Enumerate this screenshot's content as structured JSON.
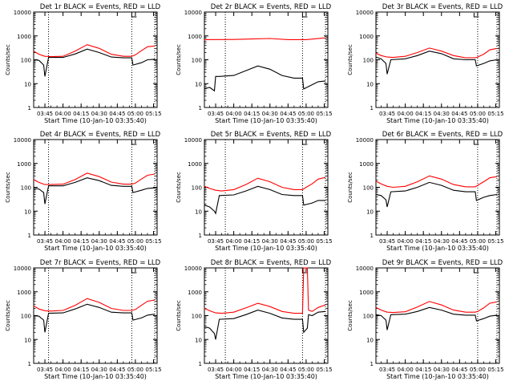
{
  "chart_data": [
    {
      "type": "line",
      "title": "Det 1r BLACK = Events, RED = LLD",
      "xlabel": "Start Time (10-Jan-10 03:35:40)",
      "ylabel": "Counts/sec",
      "xtick_labels": [
        "03:45",
        "04:00",
        "04:15",
        "04:30",
        "04:45",
        "05:00",
        "05:15"
      ],
      "ytick_labels": [
        "1",
        "10",
        "100",
        "1000",
        "10000"
      ],
      "y_scale": "log",
      "ylim": [
        1,
        10000
      ],
      "xlim": [
        "03:35:40",
        "05:18:00"
      ],
      "dotted_vlines": [
        "03:48",
        "04:57",
        "05:16"
      ],
      "series": [
        {
          "color": "#000000",
          "x": [
            "03:35:40",
            "03:40",
            "03:44",
            "03:45",
            "03:48",
            "04:00",
            "04:10",
            "04:20",
            "04:30",
            "04:40",
            "04:50",
            "04:57",
            "04:58",
            "05:05",
            "05:10",
            "05:16"
          ],
          "values": [
            100,
            95,
            60,
            20,
            125,
            125,
            175,
            280,
            200,
            130,
            120,
            120,
            60,
            75,
            100,
            105
          ]
        },
        {
          "color": "#ff0000",
          "x": [
            "03:35:40",
            "03:40",
            "03:45",
            "03:50",
            "04:00",
            "04:10",
            "04:20",
            "04:30",
            "04:40",
            "04:50",
            "04:57",
            "05:00",
            "05:05",
            "05:10",
            "05:16"
          ],
          "values": [
            230,
            170,
            140,
            135,
            140,
            230,
            430,
            300,
            170,
            140,
            140,
            160,
            240,
            350,
            380
          ]
        }
      ]
    },
    {
      "type": "line",
      "title": "Det 2r BLACK = Events, RED = LLD",
      "xlabel": "Start Time (10-Jan-10 03:35:40)",
      "ylabel": "Counts/sec",
      "xtick_labels": [
        "03:45",
        "04:00",
        "04:15",
        "04:30",
        "04:45",
        "05:00",
        "05:15"
      ],
      "ytick_labels": [
        "1",
        "10",
        "100",
        "1000",
        "10000"
      ],
      "y_scale": "log",
      "ylim": [
        1,
        10000
      ],
      "xlim": [
        "03:35:40",
        "05:18:00"
      ],
      "dotted_vlines": [
        "03:53",
        "04:57",
        "05:16"
      ],
      "series": [
        {
          "color": "#000000",
          "x": [
            "03:35:40",
            "03:40",
            "03:44",
            "03:45",
            "03:48",
            "04:00",
            "04:10",
            "04:20",
            "04:30",
            "04:40",
            "04:50",
            "04:57",
            "04:58",
            "05:05",
            "05:10",
            "05:16"
          ],
          "values": [
            6,
            7,
            5,
            20,
            20,
            22,
            35,
            55,
            40,
            22,
            17,
            17,
            6,
            9,
            12,
            13
          ]
        },
        {
          "color": "#ff0000",
          "x": [
            "03:35:40",
            "04:00",
            "04:15",
            "04:30",
            "04:45",
            "05:00",
            "05:16"
          ],
          "values": [
            700,
            710,
            740,
            780,
            700,
            700,
            830
          ]
        }
      ]
    },
    {
      "type": "line",
      "title": "Det 3r BLACK = Events, RED = LLD",
      "xlabel": "Start Time (10-Jan-10 03:35:40)",
      "ylabel": "Counts/sec",
      "xtick_labels": [
        "03:45",
        "04:00",
        "04:15",
        "04:30",
        "04:45",
        "05:00",
        "05:15"
      ],
      "ytick_labels": [
        "1",
        "10",
        "100",
        "1000",
        "10000"
      ],
      "y_scale": "log",
      "ylim": [
        1,
        10000
      ],
      "xlim": [
        "03:35:40",
        "05:18:00"
      ],
      "dotted_vlines": [
        "05:00",
        "05:16"
      ],
      "series": [
        {
          "color": "#000000",
          "x": [
            "03:35:40",
            "03:40",
            "03:44",
            "03:45",
            "03:48",
            "04:00",
            "04:10",
            "04:20",
            "04:30",
            "04:40",
            "04:50",
            "04:58",
            "04:59",
            "05:05",
            "05:10",
            "05:16"
          ],
          "values": [
            130,
            110,
            70,
            25,
            100,
            110,
            150,
            230,
            180,
            110,
            100,
            100,
            55,
            70,
            90,
            100
          ]
        },
        {
          "color": "#ff0000",
          "x": [
            "03:35:40",
            "03:40",
            "03:45",
            "03:50",
            "04:00",
            "04:10",
            "04:20",
            "04:30",
            "04:40",
            "04:50",
            "04:58",
            "05:00",
            "05:05",
            "05:10",
            "05:16"
          ],
          "values": [
            190,
            150,
            130,
            125,
            140,
            200,
            310,
            230,
            150,
            120,
            120,
            130,
            170,
            260,
            300
          ]
        }
      ]
    },
    {
      "type": "line",
      "title": "Det 4r BLACK = Events, RED = LLD",
      "xlabel": "Start Time (10-Jan-10 03:35:40)",
      "ylabel": "Counts/sec",
      "xtick_labels": [
        "03:45",
        "04:00",
        "04:15",
        "04:30",
        "04:45",
        "05:00",
        "05:15"
      ],
      "ytick_labels": [
        "1",
        "10",
        "100",
        "1000",
        "10000"
      ],
      "y_scale": "log",
      "ylim": [
        1,
        10000
      ],
      "xlim": [
        "03:35:40",
        "05:18:00"
      ],
      "dotted_vlines": [
        "03:48",
        "04:57",
        "05:16"
      ],
      "series": [
        {
          "color": "#000000",
          "x": [
            "03:35:40",
            "03:40",
            "03:44",
            "03:45",
            "03:48",
            "04:00",
            "04:10",
            "04:20",
            "04:30",
            "04:40",
            "04:50",
            "04:57",
            "04:58",
            "05:05",
            "05:10",
            "05:16"
          ],
          "values": [
            90,
            85,
            60,
            20,
            115,
            115,
            160,
            250,
            190,
            120,
            110,
            110,
            60,
            75,
            90,
            95
          ]
        },
        {
          "color": "#ff0000",
          "x": [
            "03:35:40",
            "03:40",
            "03:45",
            "03:50",
            "04:00",
            "04:10",
            "04:20",
            "04:30",
            "04:40",
            "04:50",
            "04:57",
            "05:00",
            "05:05",
            "05:10",
            "05:16"
          ],
          "values": [
            210,
            160,
            130,
            130,
            135,
            210,
            390,
            280,
            165,
            135,
            135,
            150,
            220,
            320,
            360
          ]
        }
      ]
    },
    {
      "type": "line",
      "title": "Det 5r BLACK = Events, RED = LLD",
      "xlabel": "Start Time (10-Jan-10 03:35:40)",
      "ylabel": "Counts/sec",
      "xtick_labels": [
        "03:45",
        "04:00",
        "04:15",
        "04:30",
        "04:45",
        "05:00",
        "05:15"
      ],
      "ytick_labels": [
        "1",
        "10",
        "100",
        "1000",
        "10000"
      ],
      "y_scale": "log",
      "ylim": [
        1,
        10000
      ],
      "xlim": [
        "03:35:40",
        "05:18:00"
      ],
      "dotted_vlines": [
        "03:53",
        "04:57",
        "05:16"
      ],
      "series": [
        {
          "color": "#000000",
          "x": [
            "03:35:40",
            "03:40",
            "03:44",
            "03:45",
            "03:48",
            "04:00",
            "04:10",
            "04:20",
            "04:30",
            "04:40",
            "04:50",
            "04:57",
            "04:58",
            "05:05",
            "05:10",
            "05:16"
          ],
          "values": [
            18,
            15,
            10,
            8,
            45,
            48,
            70,
            110,
            80,
            50,
            45,
            45,
            18,
            22,
            28,
            28
          ]
        },
        {
          "color": "#ff0000",
          "x": [
            "03:35:40",
            "03:40",
            "03:45",
            "03:50",
            "04:00",
            "04:10",
            "04:20",
            "04:30",
            "04:40",
            "04:50",
            "04:57",
            "05:00",
            "05:05",
            "05:10",
            "05:16"
          ],
          "values": [
            110,
            90,
            75,
            70,
            80,
            130,
            240,
            170,
            100,
            80,
            80,
            100,
            140,
            220,
            260
          ]
        }
      ]
    },
    {
      "type": "line",
      "title": "Det 6r BLACK = Events, RED = LLD",
      "xlabel": "Start Time (10-Jan-10 03:35:40)",
      "ylabel": "Counts/sec",
      "xtick_labels": [
        "03:45",
        "04:00",
        "04:15",
        "04:30",
        "04:45",
        "05:00",
        "05:15"
      ],
      "ytick_labels": [
        "1",
        "10",
        "100",
        "1000",
        "10000"
      ],
      "y_scale": "log",
      "ylim": [
        1,
        10000
      ],
      "xlim": [
        "03:35:40",
        "05:18:00"
      ],
      "dotted_vlines": [
        "05:00",
        "05:16"
      ],
      "series": [
        {
          "color": "#000000",
          "x": [
            "03:35:40",
            "03:40",
            "03:44",
            "03:45",
            "03:48",
            "04:00",
            "04:10",
            "04:20",
            "04:30",
            "04:40",
            "04:50",
            "04:58",
            "04:59",
            "05:05",
            "05:10",
            "05:16"
          ],
          "values": [
            50,
            45,
            30,
            15,
            65,
            70,
            100,
            160,
            120,
            75,
            65,
            65,
            28,
            38,
            45,
            50
          ]
        },
        {
          "color": "#ff0000",
          "x": [
            "03:35:40",
            "03:40",
            "03:45",
            "03:50",
            "04:00",
            "04:10",
            "04:20",
            "04:30",
            "04:40",
            "04:50",
            "04:58",
            "05:00",
            "05:05",
            "05:10",
            "05:16"
          ],
          "values": [
            180,
            140,
            110,
            100,
            110,
            170,
            300,
            220,
            130,
            105,
            105,
            120,
            170,
            250,
            280
          ]
        }
      ]
    },
    {
      "type": "line",
      "title": "Det 7r BLACK = Events, RED = LLD",
      "xlabel": "Start Time (10-Jan-10 03:35:40)",
      "ylabel": "Counts/sec",
      "xtick_labels": [
        "03:45",
        "04:00",
        "04:15",
        "04:30",
        "04:45",
        "05:00",
        "05:15"
      ],
      "ytick_labels": [
        "1",
        "10",
        "100",
        "1000",
        "10000"
      ],
      "y_scale": "log",
      "ylim": [
        1,
        10000
      ],
      "xlim": [
        "03:35:40",
        "05:18:00"
      ],
      "dotted_vlines": [
        "03:48",
        "04:57",
        "05:16"
      ],
      "series": [
        {
          "color": "#000000",
          "x": [
            "03:35:40",
            "03:40",
            "03:44",
            "03:45",
            "03:48",
            "04:00",
            "04:10",
            "04:20",
            "04:30",
            "04:40",
            "04:50",
            "04:57",
            "04:58",
            "05:05",
            "05:10",
            "05:16"
          ],
          "values": [
            100,
            95,
            65,
            20,
            125,
            130,
            190,
            300,
            220,
            140,
            130,
            130,
            65,
            80,
            105,
            115
          ]
        },
        {
          "color": "#ff0000",
          "x": [
            "03:35:40",
            "03:40",
            "03:45",
            "03:50",
            "04:00",
            "04:10",
            "04:20",
            "04:30",
            "04:40",
            "04:50",
            "04:57",
            "05:00",
            "05:05",
            "05:10",
            "05:16"
          ],
          "values": [
            260,
            190,
            160,
            155,
            165,
            270,
            520,
            360,
            200,
            165,
            165,
            180,
            270,
            400,
            450
          ]
        }
      ]
    },
    {
      "type": "line",
      "title": "Det 8r BLACK = Events, RED = LLD",
      "xlabel": "Start Time (10-Jan-10 03:35:40)",
      "ylabel": "Counts/sec",
      "xtick_labels": [
        "03:45",
        "04:00",
        "04:15",
        "04:30",
        "04:45",
        "05:00",
        "05:15"
      ],
      "ytick_labels": [
        "1",
        "10",
        "100",
        "1000",
        "10000"
      ],
      "y_scale": "log",
      "ylim": [
        1,
        10000
      ],
      "xlim": [
        "03:35:40",
        "05:18:00"
      ],
      "dotted_vlines": [
        "03:53",
        "04:57",
        "05:16"
      ],
      "series": [
        {
          "color": "#000000",
          "x": [
            "03:35:40",
            "03:40",
            "03:44",
            "03:45",
            "03:48",
            "04:00",
            "04:10",
            "04:20",
            "04:30",
            "04:40",
            "04:50",
            "04:57",
            "04:58",
            "05:01",
            "05:02",
            "05:05",
            "05:10",
            "05:16"
          ],
          "values": [
            35,
            30,
            18,
            10,
            70,
            75,
            110,
            170,
            125,
            80,
            70,
            70,
            20,
            30,
            110,
            100,
            140,
            150
          ]
        },
        {
          "color": "#ff0000",
          "x": [
            "03:35:40",
            "03:40",
            "03:45",
            "03:50",
            "04:00",
            "04:10",
            "04:20",
            "04:30",
            "04:40",
            "04:50",
            "04:57",
            "04:58",
            "04:59",
            "05:01",
            "05:02",
            "05:05",
            "05:10",
            "05:16"
          ],
          "values": [
            200,
            160,
            130,
            125,
            140,
            210,
            330,
            240,
            150,
            125,
            125,
            10000,
            10000,
            10000,
            170,
            150,
            220,
            280
          ]
        }
      ]
    },
    {
      "type": "line",
      "title": "Det 9r BLACK = Events, RED = LLD",
      "xlabel": "Start Time (10-Jan-10 03:35:40)",
      "ylabel": "Counts/sec",
      "xtick_labels": [
        "03:45",
        "04:00",
        "04:15",
        "04:30",
        "04:45",
        "05:00",
        "05:15"
      ],
      "ytick_labels": [
        "1",
        "10",
        "100",
        "1000",
        "10000"
      ],
      "y_scale": "log",
      "ylim": [
        1,
        10000
      ],
      "xlim": [
        "03:35:40",
        "05:18:00"
      ],
      "dotted_vlines": [
        "05:00",
        "05:16"
      ],
      "series": [
        {
          "color": "#000000",
          "x": [
            "03:35:40",
            "03:40",
            "03:44",
            "03:45",
            "03:48",
            "04:00",
            "04:10",
            "04:20",
            "04:30",
            "04:40",
            "04:50",
            "04:58",
            "04:59",
            "05:05",
            "05:10",
            "05:16"
          ],
          "values": [
            110,
            100,
            65,
            25,
            110,
            115,
            150,
            220,
            170,
            115,
            105,
            105,
            60,
            75,
            95,
            105
          ]
        },
        {
          "color": "#ff0000",
          "x": [
            "03:35:40",
            "03:40",
            "03:45",
            "03:50",
            "04:00",
            "04:10",
            "04:20",
            "04:30",
            "04:40",
            "04:50",
            "04:58",
            "05:00",
            "05:05",
            "05:10",
            "05:16"
          ],
          "values": [
            220,
            170,
            140,
            135,
            145,
            230,
            390,
            280,
            170,
            140,
            140,
            150,
            210,
            330,
            380
          ]
        }
      ]
    }
  ]
}
